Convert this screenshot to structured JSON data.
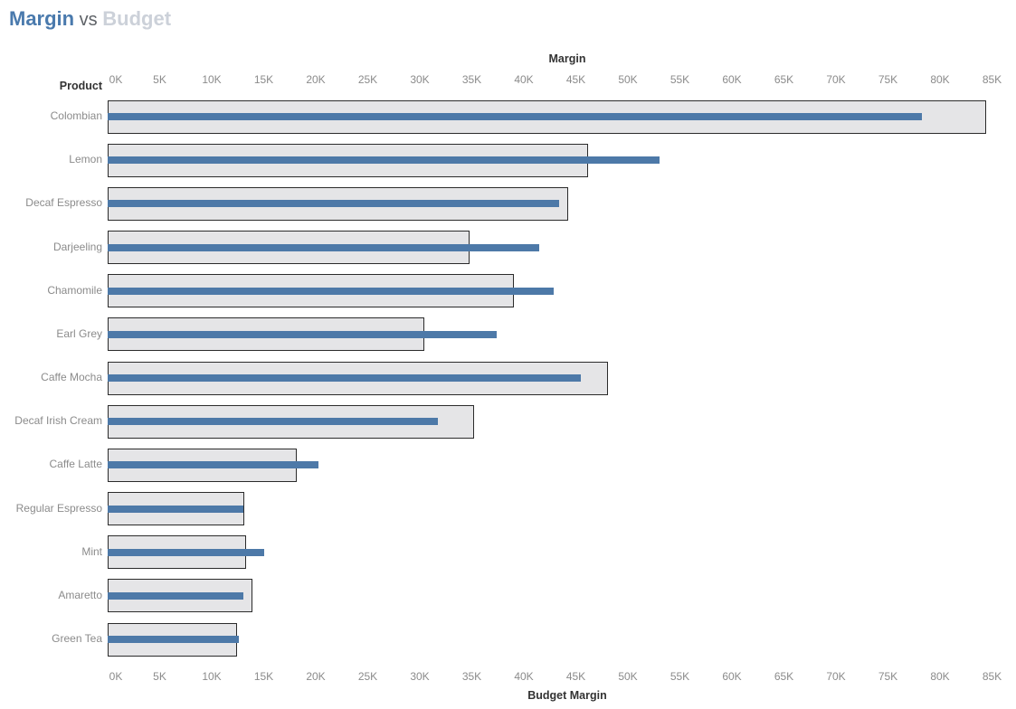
{
  "title": {
    "part1": "Margin",
    "part2": " vs ",
    "part3": "Budget"
  },
  "colors": {
    "margin_bar": "#4d79a8",
    "budget_bar_fill": "#e5e5e7",
    "budget_bar_border": "#2b2b2b",
    "title_margin": "#4a7aad",
    "title_vs": "#5f6368",
    "title_budget": "#ccd1d9",
    "tick_label": "#8b8b8b",
    "axis_title": "#333333",
    "row_label": "#8b8b8b"
  },
  "chart_data": {
    "type": "bar",
    "subtype": "bullet",
    "orientation": "horizontal",
    "title": "Margin vs Budget",
    "row_header": "Product",
    "top_axis_label": "Margin",
    "bottom_axis_label": "Budget Margin",
    "xlim": [
      0,
      85000
    ],
    "tick_step": 5000,
    "tick_labels": [
      "0K",
      "5K",
      "10K",
      "15K",
      "20K",
      "25K",
      "30K",
      "35K",
      "40K",
      "45K",
      "50K",
      "55K",
      "60K",
      "65K",
      "70K",
      "75K",
      "80K",
      "85K"
    ],
    "grid": "off",
    "legend": "none",
    "categories": [
      "Colombian",
      "Lemon",
      "Decaf Espresso",
      "Darjeeling",
      "Chamomile",
      "Earl Grey",
      "Caffe Mocha",
      "Decaf Irish Cream",
      "Caffe Latte",
      "Regular Espresso",
      "Mint",
      "Amaretto",
      "Green Tea"
    ],
    "series": [
      {
        "name": "Margin",
        "role": "measure-bar",
        "color": "#4d79a8",
        "values": [
          78300,
          53000,
          43400,
          41500,
          42900,
          37400,
          45500,
          31700,
          20300,
          13000,
          15000,
          13000,
          12600
        ]
      },
      {
        "name": "Budget Margin",
        "role": "reference-bar",
        "color": "#e5e5e7",
        "values": [
          84400,
          46200,
          44300,
          34800,
          39000,
          30400,
          48100,
          35200,
          18200,
          13100,
          13300,
          13900,
          12400
        ]
      }
    ]
  }
}
